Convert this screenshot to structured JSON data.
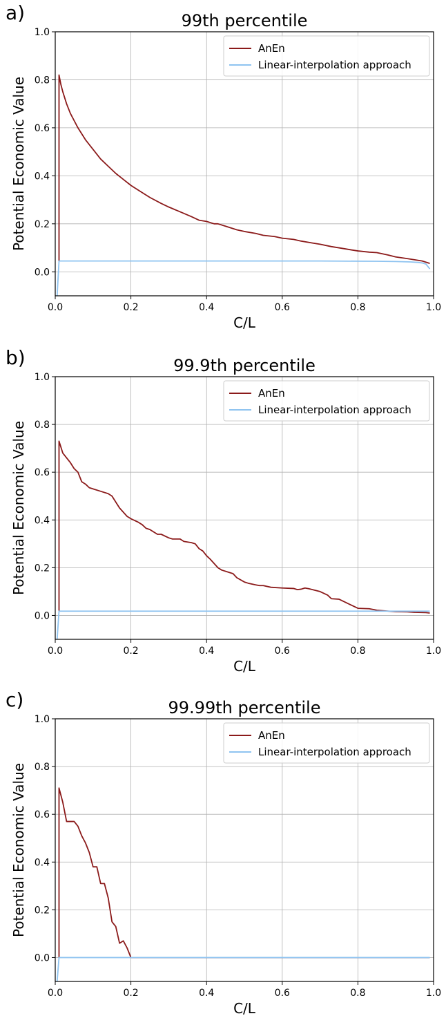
{
  "chart_data": [
    {
      "type": "line",
      "panel_label": "a)",
      "title": "99th percentile",
      "xlabel": "C/L",
      "ylabel": "Potential Economic Value",
      "xlim": [
        0,
        1
      ],
      "ylim": [
        -0.1,
        1.0
      ],
      "xticks": [
        "0.0",
        "0.2",
        "0.4",
        "0.6",
        "0.8",
        "1.0"
      ],
      "yticks": [
        "0.0",
        "0.2",
        "0.4",
        "0.6",
        "0.8",
        "1.0"
      ],
      "grid": true,
      "legend_position": "top-right",
      "series": [
        {
          "name": "AnEn",
          "color": "#8b1a1a",
          "x": [
            0.01,
            0.01,
            0.015,
            0.02,
            0.03,
            0.04,
            0.05,
            0.06,
            0.08,
            0.1,
            0.12,
            0.14,
            0.16,
            0.18,
            0.2,
            0.22,
            0.25,
            0.28,
            0.3,
            0.33,
            0.36,
            0.38,
            0.4,
            0.42,
            0.43,
            0.45,
            0.48,
            0.5,
            0.53,
            0.55,
            0.58,
            0.6,
            0.63,
            0.65,
            0.68,
            0.7,
            0.73,
            0.75,
            0.78,
            0.8,
            0.83,
            0.85,
            0.88,
            0.9,
            0.93,
            0.95,
            0.97,
            0.99
          ],
          "y": [
            0.045,
            0.82,
            0.78,
            0.75,
            0.7,
            0.66,
            0.63,
            0.6,
            0.55,
            0.51,
            0.47,
            0.44,
            0.41,
            0.385,
            0.36,
            0.34,
            0.31,
            0.285,
            0.27,
            0.25,
            0.23,
            0.215,
            0.21,
            0.2,
            0.2,
            0.19,
            0.175,
            0.168,
            0.16,
            0.152,
            0.147,
            0.14,
            0.135,
            0.128,
            0.12,
            0.115,
            0.105,
            0.1,
            0.092,
            0.087,
            0.082,
            0.08,
            0.07,
            0.062,
            0.055,
            0.05,
            0.045,
            0.035
          ]
        },
        {
          "name": "Linear-interpolation approach",
          "color": "#8ec3f0",
          "x": [
            0.005,
            0.01,
            0.02,
            0.1,
            0.3,
            0.5,
            0.7,
            0.85,
            0.9,
            0.94,
            0.96,
            0.97,
            0.98,
            0.99
          ],
          "y": [
            -0.1,
            0.045,
            0.045,
            0.045,
            0.045,
            0.045,
            0.045,
            0.044,
            0.043,
            0.041,
            0.039,
            0.037,
            0.032,
            0.012
          ]
        }
      ]
    },
    {
      "type": "line",
      "panel_label": "b)",
      "title": "99.9th percentile",
      "xlabel": "C/L",
      "ylabel": "Potential Economic Value",
      "xlim": [
        0,
        1
      ],
      "ylim": [
        -0.1,
        1.0
      ],
      "xticks": [
        "0.0",
        "0.2",
        "0.4",
        "0.6",
        "0.8",
        "1.0"
      ],
      "yticks": [
        "0.0",
        "0.2",
        "0.4",
        "0.6",
        "0.8",
        "1.0"
      ],
      "grid": true,
      "legend_position": "top-right",
      "series": [
        {
          "name": "AnEn",
          "color": "#8b1a1a",
          "x": [
            0.01,
            0.01,
            0.02,
            0.03,
            0.04,
            0.05,
            0.06,
            0.07,
            0.08,
            0.09,
            0.1,
            0.12,
            0.14,
            0.15,
            0.17,
            0.19,
            0.2,
            0.22,
            0.23,
            0.24,
            0.25,
            0.27,
            0.28,
            0.3,
            0.31,
            0.32,
            0.33,
            0.34,
            0.36,
            0.37,
            0.38,
            0.39,
            0.4,
            0.41,
            0.43,
            0.44,
            0.46,
            0.47,
            0.48,
            0.5,
            0.51,
            0.53,
            0.54,
            0.55,
            0.57,
            0.6,
            0.63,
            0.64,
            0.65,
            0.66,
            0.67,
            0.7,
            0.72,
            0.73,
            0.75,
            0.8,
            0.83,
            0.85,
            0.88,
            0.9,
            0.93,
            0.95,
            0.98,
            0.99
          ],
          "y": [
            0.02,
            0.73,
            0.68,
            0.66,
            0.64,
            0.615,
            0.6,
            0.56,
            0.55,
            0.535,
            0.53,
            0.52,
            0.51,
            0.5,
            0.45,
            0.415,
            0.405,
            0.39,
            0.38,
            0.365,
            0.36,
            0.34,
            0.34,
            0.325,
            0.32,
            0.32,
            0.32,
            0.31,
            0.305,
            0.3,
            0.28,
            0.27,
            0.25,
            0.235,
            0.2,
            0.19,
            0.18,
            0.175,
            0.158,
            0.14,
            0.135,
            0.128,
            0.125,
            0.125,
            0.118,
            0.115,
            0.113,
            0.108,
            0.11,
            0.115,
            0.112,
            0.1,
            0.085,
            0.07,
            0.068,
            0.03,
            0.028,
            0.022,
            0.018,
            0.016,
            0.015,
            0.013,
            0.012,
            0.01
          ]
        },
        {
          "name": "Linear-interpolation approach",
          "color": "#8ec3f0",
          "x": [
            0.005,
            0.01,
            0.02,
            0.2,
            0.5,
            0.8,
            0.99
          ],
          "y": [
            -0.1,
            0.018,
            0.018,
            0.018,
            0.018,
            0.018,
            0.018
          ]
        }
      ]
    },
    {
      "type": "line",
      "panel_label": "c)",
      "title": "99.99th percentile",
      "xlabel": "C/L",
      "ylabel": "Potential Economic Value",
      "xlim": [
        0,
        1
      ],
      "ylim": [
        -0.1,
        1.0
      ],
      "xticks": [
        "0.0",
        "0.2",
        "0.4",
        "0.6",
        "0.8",
        "1.0"
      ],
      "yticks": [
        "0.0",
        "0.2",
        "0.4",
        "0.6",
        "0.8",
        "1.0"
      ],
      "grid": true,
      "legend_position": "top-right",
      "series": [
        {
          "name": "AnEn",
          "color": "#8b1a1a",
          "x": [
            0.01,
            0.01,
            0.02,
            0.03,
            0.04,
            0.05,
            0.06,
            0.07,
            0.08,
            0.09,
            0.1,
            0.11,
            0.12,
            0.13,
            0.14,
            0.15,
            0.16,
            0.17,
            0.18,
            0.19,
            0.2,
            0.21,
            0.3,
            0.5,
            0.7,
            0.9,
            0.99
          ],
          "y": [
            0.0,
            0.71,
            0.65,
            0.57,
            0.57,
            0.57,
            0.55,
            0.51,
            0.48,
            0.44,
            0.38,
            0.38,
            0.31,
            0.31,
            0.25,
            0.15,
            0.13,
            0.06,
            0.07,
            0.04,
            0.0,
            0.0,
            0.0,
            0.0,
            0.0,
            0.0,
            0.0
          ]
        },
        {
          "name": "Linear-interpolation approach",
          "color": "#8ec3f0",
          "x": [
            0.005,
            0.01,
            0.02,
            0.3,
            0.6,
            0.99
          ],
          "y": [
            -0.1,
            0.0,
            0.0,
            0.0,
            0.0,
            0.0
          ]
        }
      ]
    }
  ]
}
